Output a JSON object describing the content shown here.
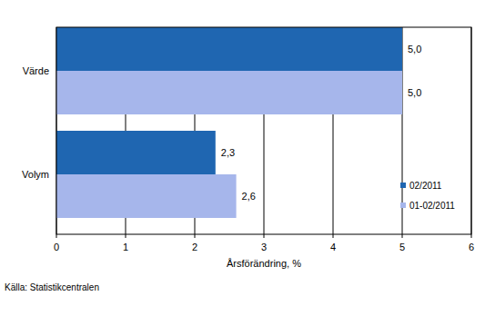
{
  "chart_data": {
    "type": "bar",
    "orientation": "horizontal",
    "categories": [
      "Värde",
      "Volym"
    ],
    "series": [
      {
        "name": "02/2011",
        "color": "#1f66b1",
        "values": [
          5.0,
          2.3
        ],
        "value_labels": [
          "5,0",
          "2,3"
        ]
      },
      {
        "name": "01-02/2011",
        "color": "#a6b6eb",
        "values": [
          5.0,
          2.6
        ],
        "value_labels": [
          "5,0",
          "2,6"
        ]
      }
    ],
    "x_label": "Årsförändring, %",
    "source": "Källa: Statistikcentralen",
    "xlim": [
      0,
      6
    ],
    "xticks": [
      0,
      1,
      2,
      3,
      4,
      5,
      6
    ],
    "grid": true,
    "legend": "lower right",
    "data_labels": true
  }
}
